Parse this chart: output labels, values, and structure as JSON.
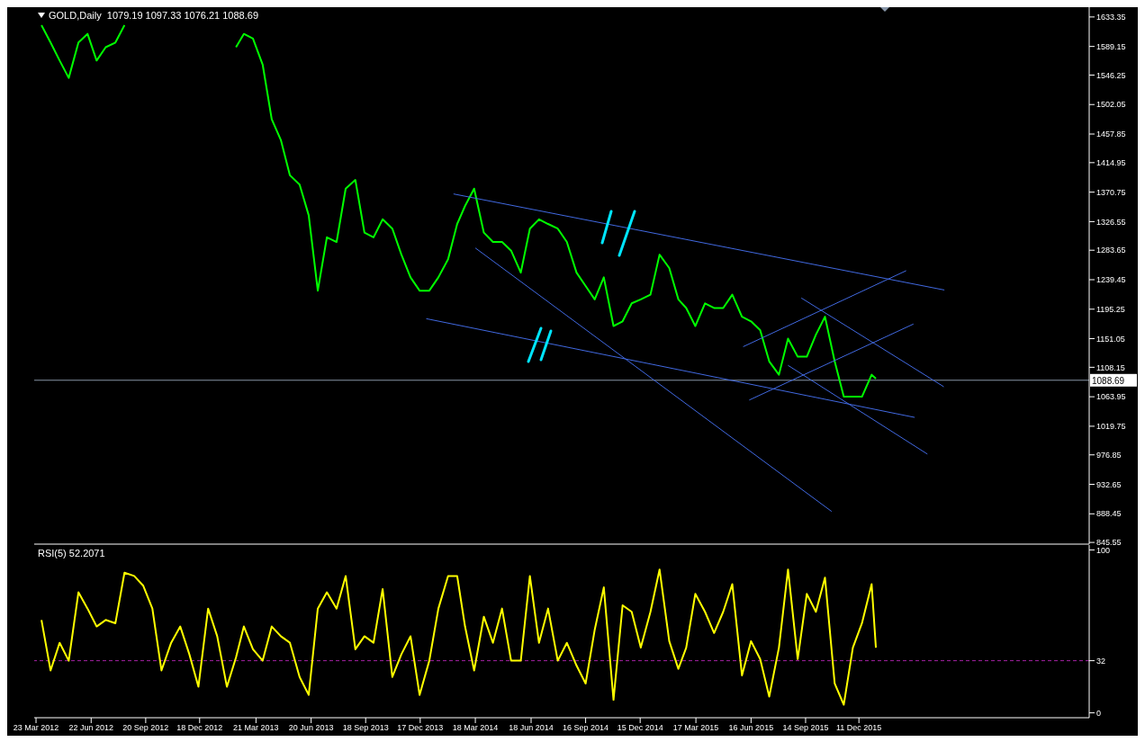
{
  "chart_data": [
    {
      "type": "line",
      "title": "GOLD,Daily  1079.19 1097.33 1076.21 1088.69",
      "tick_labels": "y",
      "x": [
        "2012-04-01",
        "2012-04-16",
        "2012-05-01",
        "2012-05-16",
        "2012-06-01",
        "2012-06-16",
        "2012-07-01",
        "2012-07-16",
        "2012-08-01",
        "2012-08-16",
        "2012-09-01",
        "2012-09-16",
        "2012-10-01",
        "2012-10-16",
        "2012-11-01",
        "2012-11-16",
        "2012-12-01",
        "2012-12-16",
        "2013-01-01",
        "2013-01-16",
        "2013-02-01",
        "2013-02-16",
        "2013-03-01",
        "2013-03-16",
        "2013-04-01",
        "2013-04-16",
        "2013-05-01",
        "2013-05-16",
        "2013-06-01",
        "2013-06-16",
        "2013-07-01",
        "2013-07-16",
        "2013-08-01",
        "2013-08-16",
        "2013-09-01",
        "2013-09-16",
        "2013-10-01",
        "2013-10-16",
        "2013-11-01",
        "2013-11-16",
        "2013-12-01",
        "2013-12-16",
        "2014-01-01",
        "2014-01-16",
        "2014-02-01",
        "2014-02-16",
        "2014-03-01",
        "2014-03-16",
        "2014-04-01",
        "2014-04-16",
        "2014-05-01",
        "2014-05-16",
        "2014-06-01",
        "2014-06-16",
        "2014-07-01",
        "2014-07-16",
        "2014-08-01",
        "2014-08-16",
        "2014-09-01",
        "2014-09-16",
        "2014-10-01",
        "2014-10-16",
        "2014-11-01",
        "2014-11-16",
        "2014-12-01",
        "2014-12-16",
        "2015-01-01",
        "2015-01-16",
        "2015-02-01",
        "2015-02-16",
        "2015-03-01",
        "2015-03-16",
        "2015-04-01",
        "2015-04-16",
        "2015-05-01",
        "2015-05-16",
        "2015-06-01",
        "2015-06-16",
        "2015-07-01",
        "2015-07-16",
        "2015-08-01",
        "2015-08-16",
        "2015-09-01",
        "2015-09-16",
        "2015-10-01",
        "2015-10-16",
        "2015-11-01",
        "2015-11-16",
        "2015-12-01",
        "2015-12-16",
        "2016-01-01",
        "2016-01-08"
      ],
      "series": [
        {
          "color": "#00ff00",
          "values": [
            1621,
            1595,
            1568,
            1542,
            1595,
            1608,
            1568,
            1588,
            1595,
            1621,
            null,
            null,
            null,
            null,
            null,
            null,
            null,
            null,
            null,
            null,
            null,
            1588,
            1608,
            1601,
            1562,
            1480,
            1449,
            1396,
            1382,
            1336,
            1223,
            1303,
            1296,
            1376,
            1389,
            1310,
            1303,
            1330,
            1316,
            1277,
            1243,
            1223,
            1223,
            1243,
            1270,
            1323,
            1350,
            1376,
            1310,
            1296,
            1296,
            1283,
            1250,
            1316,
            1330,
            1323,
            1316,
            1296,
            1250,
            1230,
            1210,
            1243,
            1170,
            1177,
            1204,
            1210,
            1217,
            1277,
            1257,
            1210,
            1197,
            1170,
            1204,
            1197,
            1197,
            1217,
            1184,
            1177,
            1164,
            1117,
            1097,
            1151,
            1124,
            1124,
            1157,
            1184,
            1117,
            1064,
            1064,
            1064,
            1097,
            1091
          ]
        },
        {
          "type": "line",
          "color": "#4169e1",
          "x": [
            "2014-02-10",
            "2016-04-30"
          ],
          "values": [
            1368,
            1224
          ]
        },
        {
          "type": "line",
          "color": "#4169e1",
          "x": [
            "2013-12-27",
            "2016-03-12"
          ],
          "values": [
            1181,
            1033
          ]
        },
        {
          "type": "line",
          "color": "#4169e1",
          "x": [
            "2014-03-18",
            "2015-10-27"
          ],
          "values": [
            1287,
            892
          ]
        },
        {
          "type": "line",
          "color": "#4169e1",
          "x": [
            "2015-06-03",
            "2016-02-27"
          ],
          "values": [
            1139,
            1253
          ]
        },
        {
          "type": "line",
          "color": "#4169e1",
          "x": [
            "2015-06-13",
            "2016-03-10"
          ],
          "values": [
            1059,
            1173
          ]
        },
        {
          "type": "line",
          "color": "#4169e1",
          "x": [
            "2015-09-07",
            "2016-04-29"
          ],
          "values": [
            1212,
            1079
          ]
        },
        {
          "type": "line",
          "color": "#4169e1",
          "x": [
            "2015-08-16",
            "2016-04-02"
          ],
          "values": [
            1111,
            978
          ]
        }
      ],
      "xlim": [
        "2012-03-20",
        "2016-12-25"
      ],
      "ylim": [
        843,
        1648
      ],
      "yticks": [
        845.55,
        888.45,
        932.65,
        976.85,
        1019.75,
        1063.95,
        1108.15,
        1151.05,
        1195.25,
        1239.45,
        1283.65,
        1326.55,
        1370.75,
        1414.95,
        1457.85,
        1502.05,
        1546.25,
        1589.15,
        1633.35
      ],
      "ref_lines": [
        {
          "axis": "y",
          "value": 1088.69,
          "label": "1088.69",
          "color": "#8896a8"
        }
      ]
    },
    {
      "type": "line",
      "title": "RSI(5) 52.2071",
      "x": [
        "2012-04-01",
        "2012-04-16",
        "2012-05-01",
        "2012-05-16",
        "2012-06-01",
        "2012-06-16",
        "2012-07-01",
        "2012-07-16",
        "2012-08-01",
        "2012-08-16",
        "2012-09-01",
        "2012-09-16",
        "2012-10-01",
        "2012-10-16",
        "2012-11-01",
        "2012-11-16",
        "2012-12-01",
        "2012-12-16",
        "2013-01-01",
        "2013-01-16",
        "2013-02-01",
        "2013-02-16",
        "2013-03-01",
        "2013-03-16",
        "2013-04-01",
        "2013-04-16",
        "2013-05-01",
        "2013-05-16",
        "2013-06-01",
        "2013-06-16",
        "2013-07-01",
        "2013-07-16",
        "2013-08-01",
        "2013-08-16",
        "2013-09-01",
        "2013-09-16",
        "2013-10-01",
        "2013-10-16",
        "2013-11-01",
        "2013-11-16",
        "2013-12-01",
        "2013-12-16",
        "2014-01-01",
        "2014-01-16",
        "2014-02-01",
        "2014-02-16",
        "2014-03-01",
        "2014-03-16",
        "2014-04-01",
        "2014-04-16",
        "2014-05-01",
        "2014-05-16",
        "2014-06-01",
        "2014-06-16",
        "2014-07-01",
        "2014-07-16",
        "2014-08-01",
        "2014-08-16",
        "2014-09-01",
        "2014-09-16",
        "2014-10-01",
        "2014-10-16",
        "2014-11-01",
        "2014-11-16",
        "2014-12-01",
        "2014-12-16",
        "2015-01-01",
        "2015-01-16",
        "2015-02-01",
        "2015-02-16",
        "2015-03-01",
        "2015-03-16",
        "2015-04-01",
        "2015-04-16",
        "2015-05-01",
        "2015-05-16",
        "2015-06-01",
        "2015-06-16",
        "2015-07-01",
        "2015-07-16",
        "2015-08-01",
        "2015-08-16",
        "2015-09-01",
        "2015-09-16",
        "2015-10-01",
        "2015-10-16",
        "2015-11-01",
        "2015-11-16",
        "2015-12-01",
        "2015-12-16",
        "2016-01-01",
        "2016-01-08"
      ],
      "series": [
        {
          "color": "#ffff00",
          "values": [
            57,
            26,
            43,
            32,
            74,
            64,
            53,
            57,
            55,
            86,
            84,
            78,
            64,
            26,
            43,
            53,
            36,
            16,
            64,
            47,
            16,
            34,
            53,
            39,
            32,
            53,
            47,
            43,
            22,
            11,
            64,
            74,
            64,
            84,
            39,
            47,
            43,
            76,
            22,
            36,
            47,
            11,
            32,
            64,
            84,
            84,
            53,
            26,
            59,
            43,
            64,
            32,
            32,
            84,
            43,
            64,
            32,
            43,
            29,
            18,
            51,
            77,
            8,
            66,
            62,
            40,
            62,
            88,
            44,
            27,
            40,
            73,
            62,
            49,
            62,
            79,
            23,
            44,
            33,
            10,
            40,
            88,
            33,
            73,
            62,
            83,
            18,
            5,
            40,
            55,
            79,
            40
          ]
        }
      ],
      "xlim": [
        "2012-03-20",
        "2016-12-25"
      ],
      "ylim": [
        -3,
        103
      ],
      "yticks": [
        0,
        32,
        100
      ],
      "xticks": [
        {
          "value": "2012-03-23",
          "label": "23 Mar 2012"
        },
        {
          "value": "2012-06-22",
          "label": "22 Jun 2012"
        },
        {
          "value": "2012-09-20",
          "label": "20 Sep 2012"
        },
        {
          "value": "2012-12-18",
          "label": "18 Dec 2012"
        },
        {
          "value": "2013-03-21",
          "label": "21 Mar 2013"
        },
        {
          "value": "2013-06-20",
          "label": "20 Jun 2013"
        },
        {
          "value": "2013-09-18",
          "label": "18 Sep 2013"
        },
        {
          "value": "2013-12-17",
          "label": "17 Dec 2013"
        },
        {
          "value": "2014-03-18",
          "label": "18 Mar 2014"
        },
        {
          "value": "2014-06-18",
          "label": "18 Jun 2014"
        },
        {
          "value": "2014-09-16",
          "label": "16 Sep 2014"
        },
        {
          "value": "2014-12-15",
          "label": "15 Dec 2014"
        },
        {
          "value": "2015-03-17",
          "label": "17 Mar 2015"
        },
        {
          "value": "2015-06-16",
          "label": "16 Jun 2015"
        },
        {
          "value": "2015-09-14",
          "label": "14 Sep 2015"
        },
        {
          "value": "2015-12-11",
          "label": "11 Dec 2015"
        }
      ],
      "ref_lines": [
        {
          "axis": "y",
          "value": 32,
          "color": "#a020a0",
          "line_style": "dashed"
        }
      ]
    }
  ]
}
